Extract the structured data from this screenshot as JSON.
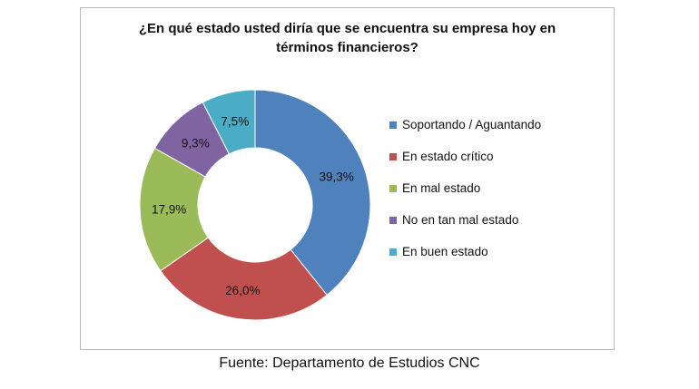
{
  "chart_data": {
    "type": "pie",
    "title_lines": [
      "¿En qué estado usted diría que se encuentra su empresa hoy en",
      "términos financieros?"
    ],
    "categories": [
      "Soportando / Aguantando",
      "En estado crítico",
      "En mal estado",
      "No en tan mal estado",
      "En buen estado"
    ],
    "values": [
      39.3,
      26.0,
      17.9,
      9.3,
      7.5
    ],
    "data_labels": [
      "39,3%",
      "26,0%",
      "17,9%",
      "9,3%",
      "7,5%"
    ],
    "colors": [
      "#4F81BD",
      "#C0504D",
      "#9BBB59",
      "#8064A2",
      "#4BACC6"
    ],
    "donut": true,
    "legend_position": "right"
  },
  "source_note": "Fuente: Departamento de Estudios CNC"
}
